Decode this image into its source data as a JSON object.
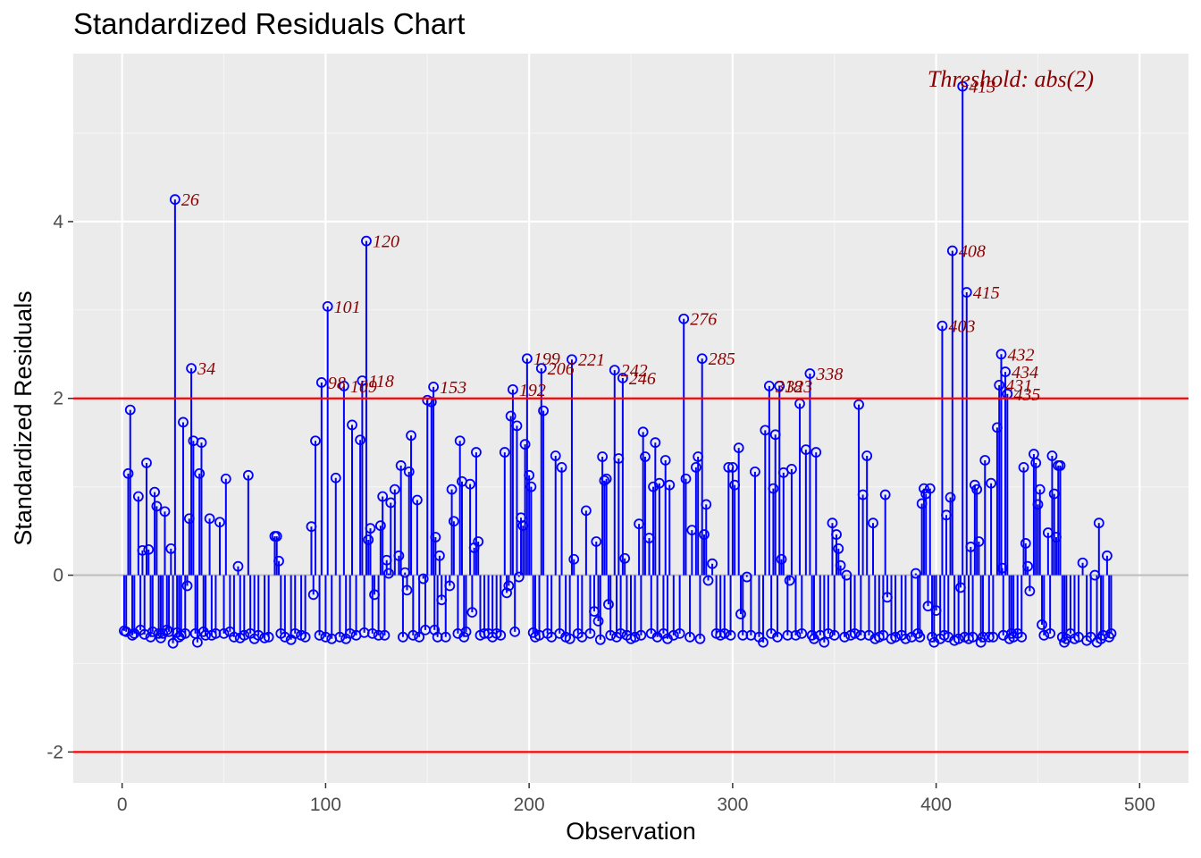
{
  "chart_data": {
    "type": "scatter",
    "title": "Standardized Residuals Chart",
    "xlabel": "Observation",
    "ylabel": "Standardized Residuals",
    "xlim": [
      -24,
      524
    ],
    "ylim": [
      -2.35,
      5.9
    ],
    "x_ticks": [
      0,
      100,
      200,
      300,
      400,
      500
    ],
    "y_ticks": [
      -2,
      0,
      2,
      4
    ],
    "thresholds": [
      2,
      -2
    ],
    "threshold_label": "Threshold: abs(2)",
    "grid": true,
    "colors": {
      "panel": "#ebebeb",
      "grid_major": "#ffffff",
      "grid_minor": "#f5f5f5",
      "stems": "#0000ff",
      "threshold_lines": "#ff0000",
      "labels": "#8b0000",
      "zero_line": "#bebebe"
    },
    "outliers": [
      {
        "x": 26,
        "y": 4.25,
        "label": "26"
      },
      {
        "x": 34,
        "y": 2.34,
        "label": "34"
      },
      {
        "x": 98,
        "y": 2.18,
        "label": "98"
      },
      {
        "x": 101,
        "y": 3.04,
        "label": "101"
      },
      {
        "x": 109,
        "y": 2.14,
        "label": "109"
      },
      {
        "x": 118,
        "y": 2.2,
        "label": "118"
      },
      {
        "x": 120,
        "y": 3.78,
        "label": "120"
      },
      {
        "x": 153,
        "y": 2.13,
        "label": "153"
      },
      {
        "x": 192,
        "y": 2.1,
        "label": "192"
      },
      {
        "x": 199,
        "y": 2.45,
        "label": "199"
      },
      {
        "x": 206,
        "y": 2.34,
        "label": "206"
      },
      {
        "x": 221,
        "y": 2.44,
        "label": "221"
      },
      {
        "x": 242,
        "y": 2.32,
        "label": "242"
      },
      {
        "x": 246,
        "y": 2.23,
        "label": "246"
      },
      {
        "x": 276,
        "y": 2.9,
        "label": "276"
      },
      {
        "x": 285,
        "y": 2.45,
        "label": "285"
      },
      {
        "x": 318,
        "y": 2.14,
        "label": "318"
      },
      {
        "x": 323,
        "y": 2.14,
        "label": "323"
      },
      {
        "x": 338,
        "y": 2.28,
        "label": "338"
      },
      {
        "x": 403,
        "y": 2.82,
        "label": "403"
      },
      {
        "x": 408,
        "y": 3.67,
        "label": "408"
      },
      {
        "x": 413,
        "y": 5.53,
        "label": "413"
      },
      {
        "x": 415,
        "y": 3.2,
        "label": "415"
      },
      {
        "x": 431,
        "y": 2.15,
        "label": "431"
      },
      {
        "x": 432,
        "y": 2.5,
        "label": "432"
      },
      {
        "x": 434,
        "y": 2.3,
        "label": "434"
      },
      {
        "x": 435,
        "y": 2.05,
        "label": "435"
      }
    ],
    "residuals_other": [
      [
        1,
        -0.63
      ],
      [
        2,
        -0.64
      ],
      [
        3,
        1.15
      ],
      [
        4,
        1.87
      ],
      [
        5,
        -0.68
      ],
      [
        6,
        -0.66
      ],
      [
        8,
        0.89
      ],
      [
        9,
        -0.62
      ],
      [
        10,
        0.28
      ],
      [
        11,
        -0.67
      ],
      [
        12,
        1.27
      ],
      [
        13,
        0.29
      ],
      [
        14,
        -0.7
      ],
      [
        15,
        -0.64
      ],
      [
        16,
        0.94
      ],
      [
        17,
        0.78
      ],
      [
        18,
        -0.66
      ],
      [
        19,
        -0.71
      ],
      [
        20,
        -0.66
      ],
      [
        21,
        0.72
      ],
      [
        22,
        -0.62
      ],
      [
        23,
        -0.64
      ],
      [
        24,
        0.3
      ],
      [
        25,
        -0.77
      ],
      [
        27,
        -0.65
      ],
      [
        28,
        -0.7
      ],
      [
        29,
        -0.68
      ],
      [
        30,
        1.73
      ],
      [
        31,
        -0.66
      ],
      [
        32,
        -0.12
      ],
      [
        33,
        0.64
      ],
      [
        35,
        1.52
      ],
      [
        36,
        -0.66
      ],
      [
        37,
        -0.76
      ],
      [
        38,
        1.15
      ],
      [
        39,
        1.5
      ],
      [
        40,
        -0.64
      ],
      [
        41,
        -0.68
      ],
      [
        43,
        0.64
      ],
      [
        44,
        -0.68
      ],
      [
        46,
        -0.66
      ],
      [
        48,
        0.6
      ],
      [
        50,
        -0.66
      ],
      [
        51,
        1.09
      ],
      [
        53,
        -0.64
      ],
      [
        55,
        -0.7
      ],
      [
        57,
        0.1
      ],
      [
        58,
        -0.71
      ],
      [
        60,
        -0.68
      ],
      [
        62,
        1.13
      ],
      [
        63,
        -0.66
      ],
      [
        65,
        -0.72
      ],
      [
        67,
        -0.68
      ],
      [
        70,
        -0.71
      ],
      [
        72,
        -0.7
      ],
      [
        75,
        0.44
      ],
      [
        76,
        0.44
      ],
      [
        77,
        0.16
      ],
      [
        78,
        -0.66
      ],
      [
        80,
        -0.7
      ],
      [
        83,
        -0.73
      ],
      [
        85,
        -0.66
      ],
      [
        88,
        -0.68
      ],
      [
        90,
        -0.7
      ],
      [
        93,
        0.55
      ],
      [
        94,
        -0.22
      ],
      [
        95,
        1.52
      ],
      [
        97,
        -0.68
      ],
      [
        100,
        -0.7
      ],
      [
        103,
        -0.72
      ],
      [
        105,
        1.1
      ],
      [
        107,
        -0.7
      ],
      [
        110,
        -0.72
      ],
      [
        112,
        -0.66
      ],
      [
        113,
        1.7
      ],
      [
        115,
        -0.68
      ],
      [
        117,
        1.53
      ],
      [
        119,
        -0.65
      ],
      [
        121,
        0.4
      ],
      [
        122,
        0.53
      ],
      [
        123,
        -0.66
      ],
      [
        124,
        -0.22
      ],
      [
        126,
        -0.68
      ],
      [
        127,
        0.56
      ],
      [
        128,
        0.89
      ],
      [
        129,
        -0.68
      ],
      [
        130,
        0.17
      ],
      [
        131,
        0.02
      ],
      [
        132,
        0.82
      ],
      [
        134,
        0.97
      ],
      [
        136,
        0.22
      ],
      [
        137,
        1.24
      ],
      [
        138,
        -0.7
      ],
      [
        139,
        0.03
      ],
      [
        140,
        -0.17
      ],
      [
        141,
        1.17
      ],
      [
        142,
        1.58
      ],
      [
        143,
        -0.68
      ],
      [
        145,
        0.85
      ],
      [
        146,
        -0.7
      ],
      [
        148,
        -0.04
      ],
      [
        149,
        -0.62
      ],
      [
        150,
        1.98
      ],
      [
        152,
        1.96
      ],
      [
        153.5,
        -0.62
      ],
      [
        154,
        0.43
      ],
      [
        155,
        -0.7
      ],
      [
        156,
        0.22
      ],
      [
        157,
        -0.28
      ],
      [
        159,
        -0.7
      ],
      [
        161,
        -0.12
      ],
      [
        162,
        0.97
      ],
      [
        163,
        0.61
      ],
      [
        165,
        -0.66
      ],
      [
        166,
        1.52
      ],
      [
        167,
        1.06
      ],
      [
        168,
        -0.7
      ],
      [
        169,
        -0.64
      ],
      [
        171,
        1.03
      ],
      [
        172,
        -0.42
      ],
      [
        173,
        0.31
      ],
      [
        174,
        1.39
      ],
      [
        175,
        0.38
      ],
      [
        176,
        -0.68
      ],
      [
        178,
        -0.66
      ],
      [
        180,
        -0.66
      ],
      [
        182,
        -0.7
      ],
      [
        184,
        -0.66
      ],
      [
        186,
        -0.68
      ],
      [
        188,
        1.39
      ],
      [
        189,
        -0.2
      ],
      [
        190,
        -0.12
      ],
      [
        191,
        1.8
      ],
      [
        193,
        -0.64
      ],
      [
        194,
        1.69
      ],
      [
        195,
        -0.02
      ],
      [
        196,
        0.65
      ],
      [
        197,
        0.56
      ],
      [
        198,
        1.48
      ],
      [
        200,
        1.13
      ],
      [
        201,
        1.0
      ],
      [
        202,
        -0.65
      ],
      [
        203,
        -0.7
      ],
      [
        205,
        -0.68
      ],
      [
        207,
        1.86
      ],
      [
        209,
        -0.66
      ],
      [
        211,
        -0.7
      ],
      [
        213,
        1.35
      ],
      [
        215,
        -0.66
      ],
      [
        216,
        1.22
      ],
      [
        218,
        -0.7
      ],
      [
        220,
        -0.72
      ],
      [
        222,
        0.18
      ],
      [
        224,
        -0.66
      ],
      [
        226,
        -0.7
      ],
      [
        228,
        0.73
      ],
      [
        230,
        -0.66
      ],
      [
        232,
        -0.41
      ],
      [
        233,
        0.38
      ],
      [
        234,
        -0.52
      ],
      [
        235,
        -0.73
      ],
      [
        236,
        1.34
      ],
      [
        237,
        1.07
      ],
      [
        238,
        1.09
      ],
      [
        239,
        -0.33
      ],
      [
        240,
        -0.68
      ],
      [
        243,
        -0.7
      ],
      [
        244,
        1.32
      ],
      [
        245,
        -0.66
      ],
      [
        247,
        0.19
      ],
      [
        248,
        -0.68
      ],
      [
        250,
        -0.72
      ],
      [
        252,
        -0.7
      ],
      [
        254,
        0.58
      ],
      [
        255,
        -0.68
      ],
      [
        256,
        1.62
      ],
      [
        257,
        1.34
      ],
      [
        259,
        0.42
      ],
      [
        260,
        -0.66
      ],
      [
        261,
        1.0
      ],
      [
        262,
        1.5
      ],
      [
        263,
        -0.7
      ],
      [
        264,
        1.04
      ],
      [
        266,
        -0.66
      ],
      [
        267,
        1.3
      ],
      [
        268,
        -0.72
      ],
      [
        269,
        1.02
      ],
      [
        271,
        -0.68
      ],
      [
        274,
        -0.66
      ],
      [
        277,
        1.09
      ],
      [
        279,
        -0.7
      ],
      [
        280,
        0.51
      ],
      [
        282,
        1.22
      ],
      [
        283,
        1.34
      ],
      [
        284,
        -0.72
      ],
      [
        286,
        0.46
      ],
      [
        287,
        0.8
      ],
      [
        288,
        -0.06
      ],
      [
        290,
        0.13
      ],
      [
        292,
        -0.66
      ],
      [
        294,
        -0.68
      ],
      [
        296,
        -0.66
      ],
      [
        298,
        1.22
      ],
      [
        299,
        -0.68
      ],
      [
        300,
        1.22
      ],
      [
        301,
        1.02
      ],
      [
        303,
        1.44
      ],
      [
        304,
        -0.44
      ],
      [
        305,
        -0.68
      ],
      [
        307,
        -0.02
      ],
      [
        309,
        -0.68
      ],
      [
        311,
        1.17
      ],
      [
        313,
        -0.7
      ],
      [
        315,
        -0.76
      ],
      [
        316,
        1.64
      ],
      [
        319,
        -0.66
      ],
      [
        320,
        0.98
      ],
      [
        321,
        1.59
      ],
      [
        322,
        -0.7
      ],
      [
        324,
        0.18
      ],
      [
        325,
        1.16
      ],
      [
        327,
        -0.68
      ],
      [
        328,
        -0.06
      ],
      [
        329,
        1.2
      ],
      [
        331,
        -0.68
      ],
      [
        333,
        1.94
      ],
      [
        334,
        -0.66
      ],
      [
        336,
        1.42
      ],
      [
        339,
        -0.68
      ],
      [
        340,
        -0.72
      ],
      [
        341,
        1.39
      ],
      [
        343,
        -0.68
      ],
      [
        345,
        -0.76
      ],
      [
        347,
        -0.66
      ],
      [
        349,
        0.59
      ],
      [
        350,
        -0.68
      ],
      [
        351,
        0.46
      ],
      [
        352,
        0.3
      ],
      [
        353,
        0.11
      ],
      [
        355,
        -0.7
      ],
      [
        356,
        0.0
      ],
      [
        358,
        -0.68
      ],
      [
        360,
        -0.66
      ],
      [
        362,
        1.93
      ],
      [
        363,
        -0.68
      ],
      [
        364,
        0.91
      ],
      [
        366,
        1.35
      ],
      [
        367,
        -0.68
      ],
      [
        369,
        0.59
      ],
      [
        370,
        -0.72
      ],
      [
        372,
        -0.7
      ],
      [
        374,
        -0.68
      ],
      [
        375,
        0.91
      ],
      [
        376,
        -0.25
      ],
      [
        378,
        -0.72
      ],
      [
        380,
        -0.7
      ],
      [
        383,
        -0.68
      ],
      [
        385,
        -0.72
      ],
      [
        388,
        -0.7
      ],
      [
        390,
        0.02
      ],
      [
        391,
        -0.66
      ],
      [
        392,
        -0.7
      ],
      [
        393,
        0.81
      ],
      [
        394,
        0.98
      ],
      [
        395,
        0.92
      ],
      [
        396,
        -0.35
      ],
      [
        397,
        0.98
      ],
      [
        398,
        -0.7
      ],
      [
        399,
        -0.76
      ],
      [
        400,
        -0.4
      ],
      [
        402,
        -0.72
      ],
      [
        404,
        -0.68
      ],
      [
        405,
        0.68
      ],
      [
        406,
        -0.7
      ],
      [
        407,
        0.88
      ],
      [
        409,
        -0.74
      ],
      [
        411,
        -0.72
      ],
      [
        412,
        -0.14
      ],
      [
        414,
        -0.7
      ],
      [
        416,
        -0.72
      ],
      [
        417,
        0.32
      ],
      [
        418,
        -0.7
      ],
      [
        419,
        1.02
      ],
      [
        420,
        0.97
      ],
      [
        421,
        0.38
      ],
      [
        422,
        -0.76
      ],
      [
        423,
        -0.7
      ],
      [
        424,
        1.3
      ],
      [
        426,
        -0.7
      ],
      [
        427,
        1.04
      ],
      [
        428,
        -0.7
      ],
      [
        430,
        1.67
      ],
      [
        432.5,
        0.08
      ],
      [
        433,
        -0.68
      ],
      [
        436,
        -0.72
      ],
      [
        437,
        -0.66
      ],
      [
        438,
        -0.7
      ],
      [
        440,
        -0.66
      ],
      [
        442,
        -0.7
      ],
      [
        443,
        1.22
      ],
      [
        444,
        0.36
      ],
      [
        445,
        0.1
      ],
      [
        446,
        -0.18
      ],
      [
        448,
        1.37
      ],
      [
        449,
        1.27
      ],
      [
        450,
        0.8
      ],
      [
        451,
        0.97
      ],
      [
        452,
        -0.56
      ],
      [
        453,
        -0.68
      ],
      [
        455,
        0.48
      ],
      [
        456,
        -0.66
      ],
      [
        457,
        1.35
      ],
      [
        458,
        0.92
      ],
      [
        459,
        0.43
      ],
      [
        460,
        1.24
      ],
      [
        461,
        1.24
      ],
      [
        462,
        -0.7
      ],
      [
        463,
        -0.76
      ],
      [
        464,
        -0.72
      ],
      [
        466,
        -0.66
      ],
      [
        468,
        -0.72
      ],
      [
        470,
        -0.7
      ],
      [
        472,
        0.14
      ],
      [
        474,
        -0.74
      ],
      [
        476,
        -0.7
      ],
      [
        478,
        0.0
      ],
      [
        479,
        -0.76
      ],
      [
        480,
        0.59
      ],
      [
        481,
        -0.72
      ],
      [
        482,
        -0.68
      ],
      [
        484,
        0.22
      ],
      [
        485,
        -0.7
      ],
      [
        486,
        -0.66
      ]
    ]
  }
}
